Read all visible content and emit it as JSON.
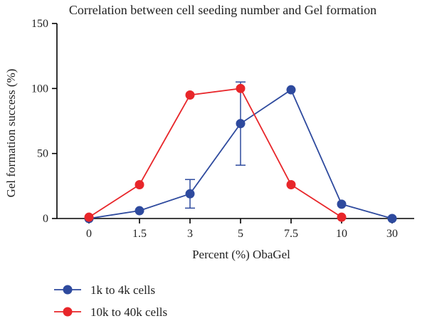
{
  "chart_data": {
    "type": "line",
    "title": "Correlation between cell seeding number and Gel formation",
    "xlabel": "Percent (%) ObaGel",
    "ylabel": "Gel formation success (%)",
    "categories": [
      "0",
      "1.5",
      "3",
      "5",
      "7.5",
      "10",
      "30"
    ],
    "ylim": [
      0,
      150
    ],
    "yticks": [
      0,
      50,
      100,
      150
    ],
    "grid": false,
    "legend_position": "bottom-left",
    "series": [
      {
        "name": "1k to 4k cells",
        "color": "#2e4a9e",
        "values": [
          0,
          6,
          19,
          73,
          99,
          11,
          0
        ],
        "error": [
          null,
          null,
          11,
          32,
          null,
          null,
          null
        ]
      },
      {
        "name": "10k to 40k cells",
        "color": "#e8262a",
        "values": [
          1,
          26,
          95,
          100,
          26,
          1,
          null
        ],
        "error": [
          null,
          null,
          null,
          null,
          null,
          null,
          null
        ]
      }
    ]
  }
}
